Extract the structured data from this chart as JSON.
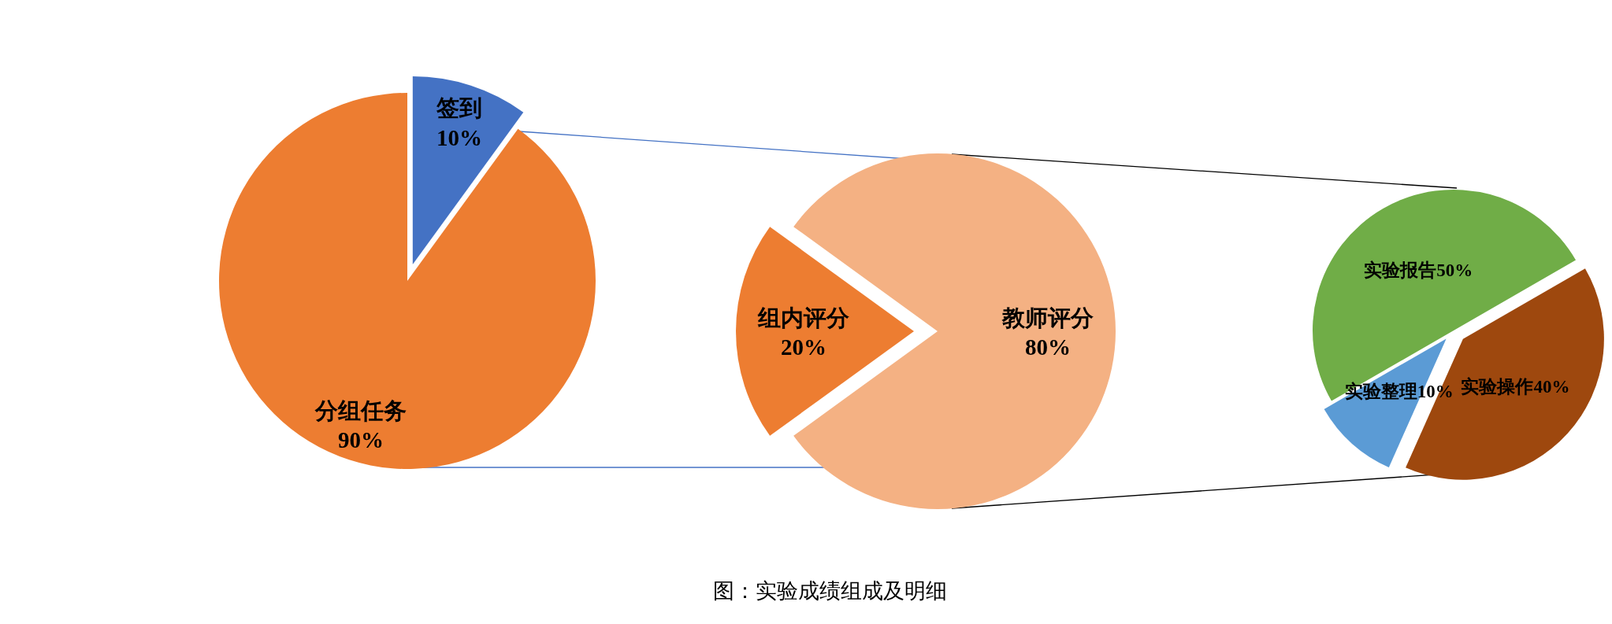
{
  "chart_data": [
    {
      "type": "pie",
      "categories": [
        "签到",
        "分组任务"
      ],
      "values": [
        10,
        90
      ],
      "colors": [
        "#4472c4",
        "#ed7d31"
      ],
      "value_labels": [
        "10%",
        "90%"
      ]
    },
    {
      "type": "pie",
      "categories": [
        "组内评分",
        "教师评分"
      ],
      "values": [
        20,
        80
      ],
      "colors": [
        "#ed7d31",
        "#f4b183"
      ],
      "value_labels": [
        "20%",
        "80%"
      ],
      "annotations": [
        "图：实验成绩组成及明细"
      ]
    },
    {
      "type": "pie",
      "categories": [
        "实验报告",
        "实验操作",
        "实验整理"
      ],
      "values": [
        50,
        40,
        10
      ],
      "colors": [
        "#70ad47",
        "#9e480e",
        "#5b9bd5"
      ],
      "value_labels": [
        "50%",
        "40%",
        "10%"
      ]
    }
  ]
}
